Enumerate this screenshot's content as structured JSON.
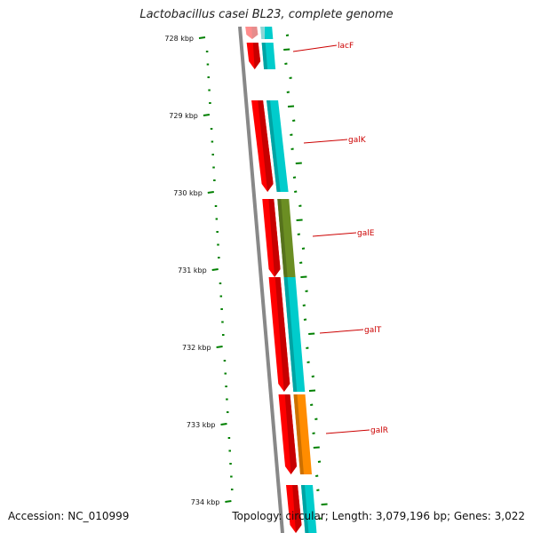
{
  "title": "Lactobacillus casei BL23, complete genome",
  "footer": {
    "accession": "Accession: NC_010999",
    "summary": "Topology: circular; Length: 3,079,196 bp; Genes: 3,022"
  },
  "ticks": [
    {
      "label": "728 kbp"
    },
    {
      "label": "729 kbp"
    },
    {
      "label": "730 kbp"
    },
    {
      "label": "731 kbp"
    },
    {
      "label": "732 kbp"
    },
    {
      "label": "733 kbp"
    },
    {
      "label": "734 kbp"
    }
  ],
  "genes": [
    {
      "label": "",
      "strand_color": "#ff0000",
      "cog_color": "#00cccc"
    },
    {
      "label": "lacF",
      "strand_color": "#ff0000",
      "cog_color": "#00cccc"
    },
    {
      "label": "galK",
      "strand_color": "#ff0000",
      "cog_color": "#00cccc"
    },
    {
      "label": "galE",
      "strand_color": "#ff0000",
      "cog_color": "#6b8e23"
    },
    {
      "label": "galT",
      "strand_color": "#ff0000",
      "cog_color": "#00cccc"
    },
    {
      "label": "galR",
      "strand_color": "#ff0000",
      "cog_color": "#ff8c00"
    },
    {
      "label": "",
      "strand_color": "#ff0000",
      "cog_color": "#00cccc"
    }
  ],
  "colors": {
    "backbone": "#888888",
    "gc_content": "#008000",
    "label_line": "#cc0000"
  }
}
